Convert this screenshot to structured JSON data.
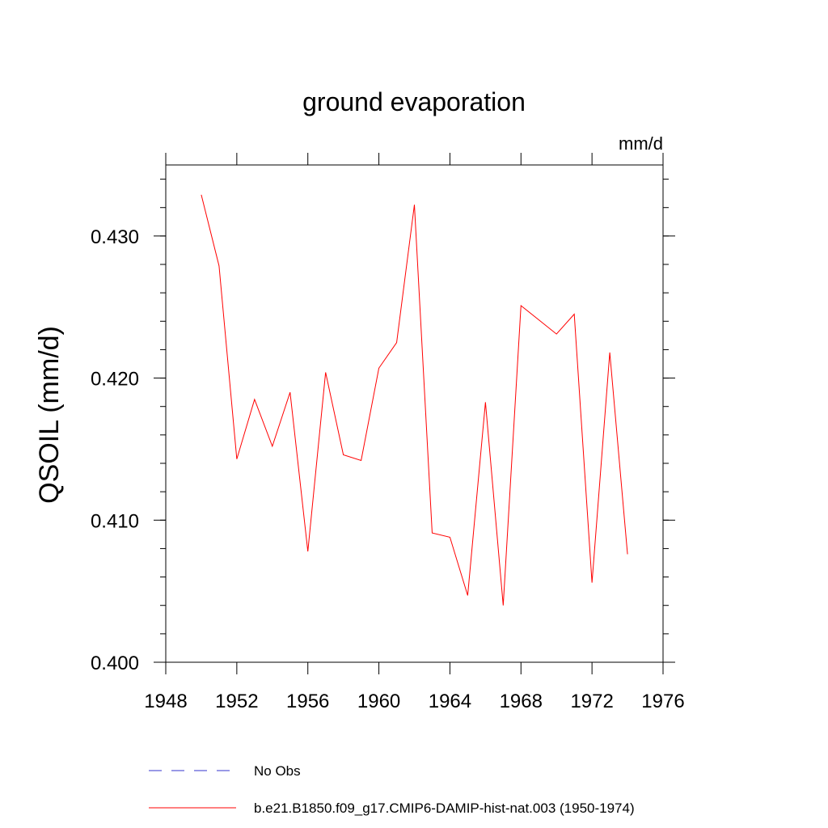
{
  "chart_data": {
    "type": "line",
    "title": "ground evaporation",
    "units_label": "mm/d",
    "ylabel": "QSOIL  (mm/d)",
    "xlabel": "",
    "xlim": [
      1948,
      1976
    ],
    "ylim": [
      0.4,
      0.435
    ],
    "x_major_ticks": [
      1948,
      1952,
      1956,
      1960,
      1964,
      1968,
      1972,
      1976
    ],
    "x_tick_labels": [
      "1948",
      "1952",
      "1956",
      "1960",
      "1964",
      "1968",
      "1972",
      "1976"
    ],
    "y_major_ticks": [
      0.4,
      0.41,
      0.42,
      0.43
    ],
    "y_tick_labels": [
      "0.400",
      "0.410",
      "0.420",
      "0.430"
    ],
    "y_minor_step": 0.002,
    "grid": false,
    "legend_position": "bottom",
    "series": [
      {
        "name": "b.e21.B1850.f09_g17.CMIP6-DAMIP-hist-nat.003 (1950-1974)",
        "color": "#ff0000",
        "dash": "solid",
        "x": [
          1950,
          1951,
          1952,
          1953,
          1954,
          1955,
          1956,
          1957,
          1958,
          1959,
          1960,
          1961,
          1962,
          1963,
          1964,
          1965,
          1966,
          1967,
          1968,
          1969,
          1970,
          1971,
          1972,
          1973,
          1974
        ],
        "values": [
          0.4329,
          0.4279,
          0.4143,
          0.4185,
          0.4152,
          0.419,
          0.4078,
          0.4204,
          0.4146,
          0.4142,
          0.4207,
          0.4225,
          0.4322,
          0.4091,
          0.4088,
          0.4047,
          0.4183,
          0.404,
          0.4251,
          0.4241,
          0.4231,
          0.4245,
          0.4056,
          0.4218,
          0.4076
        ]
      }
    ],
    "legend": [
      {
        "label": "No Obs",
        "color": "#3333cc",
        "dash": "dashed"
      },
      {
        "label": "b.e21.B1850.f09_g17.CMIP6-DAMIP-hist-nat.003 (1950-1974)",
        "color": "#ff0000",
        "dash": "solid"
      }
    ]
  }
}
